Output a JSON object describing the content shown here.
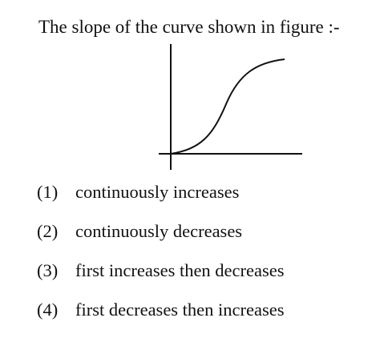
{
  "question": {
    "text": "The slope of the curve shown in figure :-"
  },
  "figure": {
    "curve": "s-curve",
    "stroke_color": "#111111"
  },
  "options": [
    {
      "number": "(1)",
      "text": "continuously increases"
    },
    {
      "number": "(2)",
      "text": "continuously decreases"
    },
    {
      "number": "(3)",
      "text": "first increases then decreases"
    },
    {
      "number": "(4)",
      "text": "first decreases then increases"
    }
  ]
}
